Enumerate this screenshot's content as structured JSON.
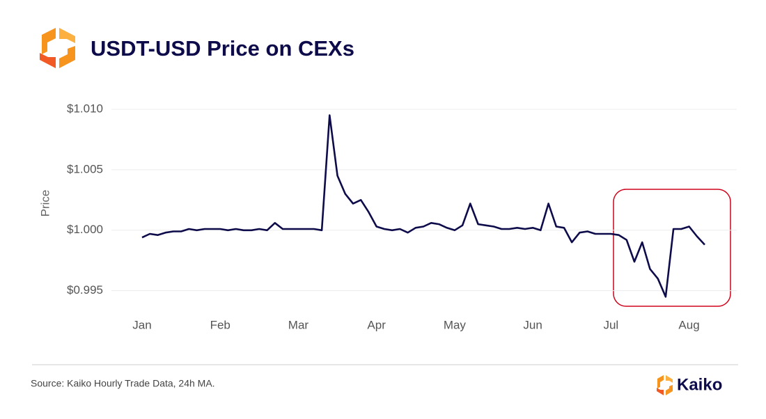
{
  "chart_data": {
    "type": "line",
    "title": "USDT-USD Price on CEXs",
    "y_label": "Price",
    "source": "Source: Kaiko Hourly Trade Data, 24h MA.",
    "brand": "Kaiko",
    "categories": [
      "Jan",
      null,
      null,
      null,
      null,
      null,
      null,
      null,
      null,
      null,
      "Feb",
      null,
      null,
      null,
      null,
      null,
      null,
      null,
      null,
      null,
      "Mar",
      null,
      null,
      null,
      null,
      null,
      null,
      null,
      null,
      null,
      "Apr",
      null,
      null,
      null,
      null,
      null,
      null,
      null,
      null,
      null,
      "May",
      null,
      null,
      null,
      null,
      null,
      null,
      null,
      null,
      null,
      "Jun",
      null,
      null,
      null,
      null,
      null,
      null,
      null,
      null,
      null,
      "Jul",
      null,
      null,
      null,
      null,
      null,
      null,
      null,
      null,
      null,
      "Aug",
      null,
      null
    ],
    "series": [
      {
        "name": "USDT-USD",
        "color": "#0d0b4a",
        "values": [
          0.9994,
          0.9997,
          0.9996,
          0.9998,
          0.9999,
          0.9999,
          1.0001,
          1.0,
          1.0001,
          1.0001,
          1.0001,
          1.0,
          1.0001,
          1.0,
          1.0,
          1.0001,
          1.0,
          1.0006,
          1.0001,
          1.0001,
          1.0001,
          1.0001,
          1.0001,
          1.0,
          1.0095,
          1.0045,
          1.003,
          1.0022,
          1.0025,
          1.0015,
          1.0003,
          1.0001,
          1.0,
          1.0001,
          0.9998,
          1.0002,
          1.0003,
          1.0006,
          1.0005,
          1.0002,
          1.0,
          1.0004,
          1.0022,
          1.0005,
          1.0004,
          1.0003,
          1.0001,
          1.0001,
          1.0002,
          1.0001,
          1.0002,
          1.0,
          1.0022,
          1.0003,
          1.0002,
          0.999,
          0.9998,
          0.9999,
          0.9997,
          0.9997,
          0.9997,
          0.9996,
          0.9992,
          0.9974,
          0.999,
          0.9968,
          0.996,
          0.9945,
          1.0001,
          1.0001,
          1.0003,
          0.9995,
          0.9988
        ]
      }
    ],
    "ylim": [
      0.9936,
      1.0104
    ],
    "yticks": [
      {
        "value": 0.995,
        "label": "$0.995"
      },
      {
        "value": 1.0,
        "label": "$1.000"
      },
      {
        "value": 1.005,
        "label": "$1.005"
      },
      {
        "value": 1.01,
        "label": "$1.010"
      }
    ],
    "grid": true
  }
}
